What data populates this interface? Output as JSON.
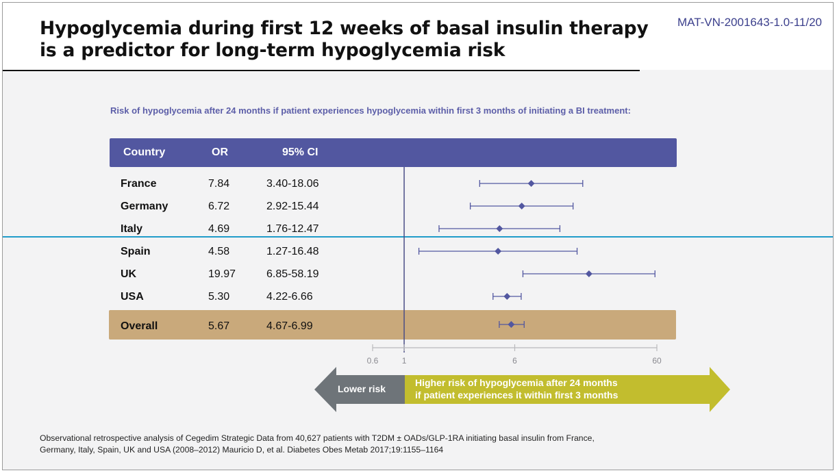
{
  "slide": {
    "title_lines": [
      "Hypoglycemia during first 12 weeks of basal insulin therapy",
      "is a predictor for long-term hypoglycemia risk"
    ],
    "ref_code": "MAT-VN-2001643-1.0-11/20",
    "subtitle": "Risk of hypoglycemia after 24 months if patient experiences hypoglycemia within first 3 months of initiating a BI treatment:",
    "arrows": {
      "lower": "Lower risk",
      "higher_lines": [
        "Higher risk of hypoglycemia after 24 months",
        "if patient experiences it within first 3 months"
      ]
    },
    "footnote_lines": [
      "Observational retrospective analysis of Cegedim Strategic Data from 40,627 patients with T2DM ± OADs/GLP-1RA initiating basal insulin from France,",
      "Germany, Italy, Spain, UK and USA (2008–2012) Mauricio D, et al. Diabetes Obes Metab 2017;19:1155–1164"
    ]
  },
  "colors": {
    "header": "#5257a0",
    "overall_band": "#c9a97b",
    "marker": "#5257a0",
    "reference_line": "#4a4d86",
    "divider": "#1e9bc9",
    "lower_arrow": "#6e7479",
    "higher_arrow": "#c2bd2e"
  },
  "chart_data": {
    "type": "forest",
    "columns": [
      "Country",
      "OR",
      "95% CI"
    ],
    "rows": [
      {
        "country": "France",
        "or_text": "7.84",
        "ci_text": "3.40-18.06",
        "or": 7.84,
        "ci_low": 3.4,
        "ci_high": 18.06
      },
      {
        "country": "Germany",
        "or_text": "6.72",
        "ci_text": "2.92-15.44",
        "or": 6.72,
        "ci_low": 2.92,
        "ci_high": 15.44
      },
      {
        "country": "Italy",
        "or_text": "4.69",
        "ci_text": "1.76-12.47",
        "or": 4.69,
        "ci_low": 1.76,
        "ci_high": 12.47
      },
      {
        "country": "Spain",
        "or_text": "4.58",
        "ci_text": "1.27-16.48",
        "or": 4.58,
        "ci_low": 1.27,
        "ci_high": 16.48
      },
      {
        "country": "UK",
        "or_text": "19.97",
        "ci_text": "6.85-58.19",
        "or": 19.97,
        "ci_low": 6.85,
        "ci_high": 58.19
      },
      {
        "country": "USA",
        "or_text": "5.30",
        "ci_text": "4.22-6.66",
        "or": 5.3,
        "ci_low": 4.22,
        "ci_high": 6.66
      }
    ],
    "overall": {
      "country": "Overall",
      "or_text": "5.67",
      "ci_text": "4.67-6.99",
      "or": 5.67,
      "ci_low": 4.67,
      "ci_high": 6.99
    },
    "x_scale": "log",
    "xlim": [
      0.6,
      60
    ],
    "x_ticks": [
      0.6,
      1,
      6,
      60
    ],
    "x_tick_labels": [
      "0.6",
      "1",
      "6",
      "60"
    ],
    "reference_value": 1
  }
}
